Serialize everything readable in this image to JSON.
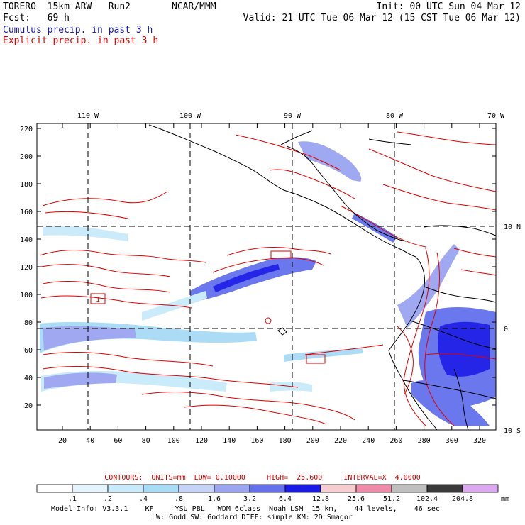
{
  "header": {
    "model": "TORERO  15km ARW   Run2",
    "org": "NCAR/MMM",
    "init": "Init: 00 UTC Sun 04 Mar 12",
    "fcst": "Fcst:   69 h",
    "valid": "Valid: 21 UTC Tue 06 Mar 12 (15 CST Tue 06 Mar 12)",
    "legend_cumulus": "Cumulus precip. in past 3 h",
    "legend_explicit": "Explicit precip. in past 3 h",
    "cumulus_color": "#1a1aa8",
    "explicit_color": "#e00000"
  },
  "map": {
    "top_lon_labels": [
      "110 W",
      "100 W",
      "90 W",
      "80 W",
      "70 W"
    ],
    "right_lat_labels": [
      "10 N",
      "0",
      "10 S"
    ],
    "y_ticks": [
      "220",
      "200",
      "180",
      "160",
      "140",
      "120",
      "100",
      "80",
      "60",
      "40",
      "20"
    ],
    "x_ticks": [
      "20",
      "40",
      "60",
      "80",
      "100",
      "120",
      "140",
      "160",
      "180",
      "200",
      "220",
      "240",
      "260",
      "280",
      "300",
      "320"
    ],
    "box_labels": [
      "1"
    ]
  },
  "contours": {
    "text": "CONTOURS:  UNITS=mm  LOW= 0.10000     HIGH=  25.600     INTERVAL=X  4.0000"
  },
  "colorbar": {
    "labels": [
      ".1",
      ".2",
      ".4",
      ".8",
      "1.6",
      "3.2",
      "6.4",
      "12.8",
      "25.6",
      "51.2",
      "102.4",
      "204.8"
    ],
    "units": "mm",
    "colors": [
      "#ffffff",
      "#e6f5fd",
      "#c8eafa",
      "#a8dbf5",
      "#c5d3f8",
      "#9aa4f0",
      "#6470ec",
      "#1a1ae6",
      "#f8cdd0",
      "#f08aa8",
      "#bfbfbf",
      "#3a3a3a",
      "#dca8f0"
    ]
  },
  "footer": {
    "line1": "Model Info: V3.3.1    KF     YSU PBL   WDM 6class  Noah LSM  15 km,    44 levels,    46 sec",
    "line2": "LW: Godd SW: Goddard DIFF: simple KM: 2D Smagor"
  }
}
